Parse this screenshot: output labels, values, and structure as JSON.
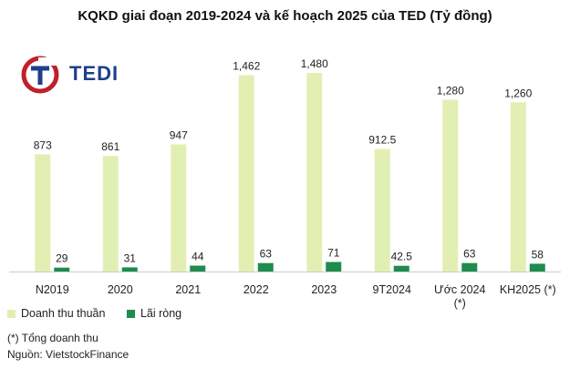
{
  "chart_data": {
    "type": "bar",
    "title": "KQKD giai đoạn 2019-2024 và kế hoạch 2025 của TED (Tỷ đồng)",
    "categories": [
      "N2019",
      "2020",
      "2021",
      "2022",
      "2023",
      "9T2024",
      "Ước 2024\n(*)",
      "KH2025 (*)"
    ],
    "series": [
      {
        "name": "Doanh thu thuần",
        "color": "#e2efb3",
        "values": [
          873,
          861,
          947,
          1462,
          1480,
          912.5,
          1280,
          1260
        ],
        "labels": [
          "873",
          "861",
          "947",
          "1,462",
          "1,480",
          "912.5",
          "1,280",
          "1,260"
        ]
      },
      {
        "name": "Lãi ròng",
        "color": "#1e8c4e",
        "values": [
          29,
          31,
          44,
          63,
          71,
          42.5,
          63,
          58
        ],
        "labels": [
          "29",
          "31",
          "44",
          "63",
          "71",
          "42.5",
          "63",
          "58"
        ]
      }
    ],
    "ylim": [
      0,
      1500
    ],
    "grid": false,
    "legend": "bottom-left"
  },
  "logo": {
    "text": "TEDI",
    "ring_color": "#c0202a",
    "text_color": "#1f3e8c"
  },
  "notes": {
    "footnote": "(*) Tổng doanh thu",
    "source": "Nguồn: VietstockFinance"
  }
}
